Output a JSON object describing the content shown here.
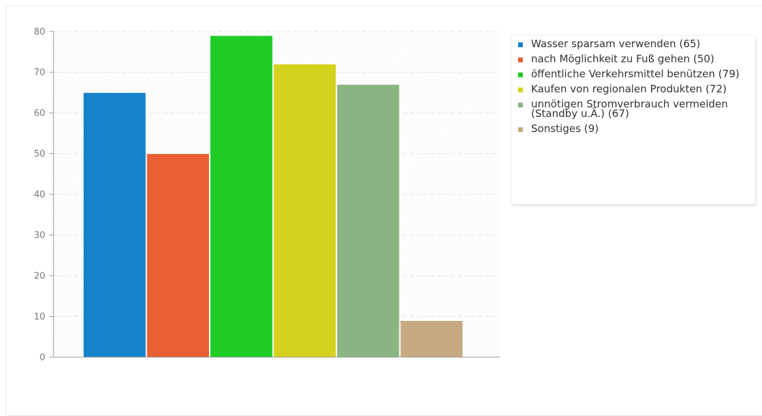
{
  "chart_data": {
    "type": "bar",
    "ylim": [
      0,
      80
    ],
    "yticks": [
      0,
      10,
      20,
      30,
      40,
      50,
      60,
      70,
      80
    ],
    "grid": true,
    "legend_placement": "right",
    "series": [
      {
        "name": "Wasser sparsam verwenden (65)",
        "value": 65,
        "color": "#1582cc"
      },
      {
        "name": "nach Möglichkeit zu Fuß gehen (50)",
        "value": 50,
        "color": "#e86033"
      },
      {
        "name": "öffentliche Verkehrsmittel benützen (79)",
        "value": 79,
        "color": "#1fcc25"
      },
      {
        "name": "Kaufen von regionalen Produkten (72)",
        "value": 72,
        "color": "#d4d21e"
      },
      {
        "name": "unnötigen Stromverbrauch vermeiden (Standby u.Ä.) (67)",
        "value": 67,
        "color": "#8ab582"
      },
      {
        "name": "Sonstiges (9)",
        "value": 9,
        "color": "#c8aa82"
      }
    ]
  }
}
